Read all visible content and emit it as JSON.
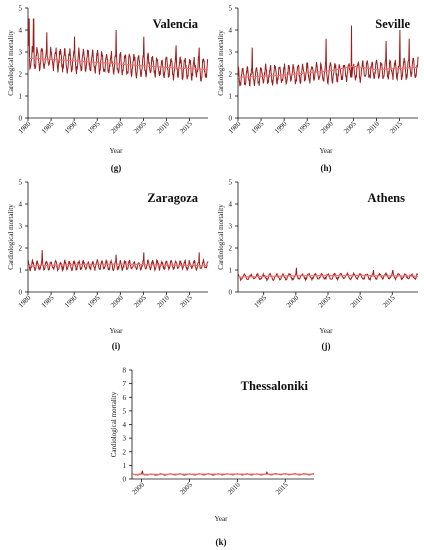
{
  "figure": {
    "background": "#ffffff"
  },
  "colors": {
    "observed": "#9e1b1b",
    "smoothed": "#f07474",
    "axis": "#111111"
  },
  "chart_data": [
    {
      "type": "line",
      "panel_letter": "(g)",
      "title": "Valencia",
      "xlabel": "Year",
      "ylabel": "Cardiological mortality",
      "xlim": [
        1980,
        2019
      ],
      "ylim": [
        0,
        5
      ],
      "xticks": [
        1980,
        1985,
        1990,
        1995,
        2000,
        2005,
        2010,
        2015
      ],
      "yticks": [
        0,
        1,
        2,
        3,
        4,
        5
      ],
      "series": [
        {
          "role": "observed",
          "x_start": 1980,
          "x_end": 2019,
          "start_level": 2.75,
          "end_level": 2.2,
          "amplitude": 0.85,
          "spikes": [
            [
              1980.2,
              4.5
            ],
            [
              1981.2,
              4.5
            ],
            [
              1984.1,
              3.9
            ],
            [
              1990.1,
              3.7
            ],
            [
              1999.1,
              4.0
            ],
            [
              2005.1,
              3.7
            ],
            [
              2012.1,
              3.3
            ],
            [
              2017.1,
              3.2
            ]
          ]
        },
        {
          "role": "smoothed",
          "x": [
            1980,
            1990,
            2000,
            2010,
            2019
          ],
          "y": [
            2.72,
            2.6,
            2.45,
            2.3,
            2.2
          ]
        }
      ]
    },
    {
      "type": "line",
      "panel_letter": "(h)",
      "title": "Seville",
      "xlabel": "Year",
      "ylabel": "Cardiological mortality",
      "xlim": [
        1980,
        2019
      ],
      "ylim": [
        0,
        5
      ],
      "xticks": [
        1980,
        1985,
        1990,
        1995,
        2000,
        2005,
        2010,
        2015
      ],
      "yticks": [
        0,
        1,
        2,
        3,
        4,
        5
      ],
      "series": [
        {
          "role": "observed",
          "x_start": 1980,
          "x_end": 2019,
          "start_level": 1.9,
          "end_level": 2.25,
          "amplitude": 0.75,
          "spikes": [
            [
              1983.1,
              3.2
            ],
            [
              1999.1,
              3.6
            ],
            [
              2004.6,
              4.2
            ],
            [
              2012.1,
              3.5
            ],
            [
              2015.1,
              4.0
            ],
            [
              2017.1,
              3.6
            ]
          ]
        },
        {
          "role": "smoothed",
          "x": [
            1980,
            1990,
            2000,
            2005,
            2010,
            2019
          ],
          "y": [
            1.85,
            1.95,
            2.15,
            2.35,
            2.2,
            2.3
          ]
        }
      ]
    },
    {
      "type": "line",
      "panel_letter": "(i)",
      "title": "Zaragoza",
      "xlabel": "Year",
      "ylabel": "Cardiological mortality",
      "xlim": [
        1980,
        2019
      ],
      "ylim": [
        0,
        5
      ],
      "xticks": [
        1980,
        1985,
        1990,
        1995,
        2000,
        2005,
        2010,
        2015
      ],
      "yticks": [
        0,
        1,
        2,
        3,
        4,
        5
      ],
      "series": [
        {
          "role": "observed",
          "x_start": 1980,
          "x_end": 2019,
          "start_level": 1.2,
          "end_level": 1.22,
          "amplitude": 0.35,
          "spikes": [
            [
              1983.1,
              1.9
            ],
            [
              1999.1,
              1.7
            ],
            [
              2005.1,
              1.8
            ],
            [
              2017.1,
              1.8
            ]
          ]
        },
        {
          "role": "smoothed",
          "x": [
            1980,
            1990,
            2000,
            2010,
            2019
          ],
          "y": [
            1.18,
            1.25,
            1.27,
            1.22,
            1.2
          ]
        }
      ]
    },
    {
      "type": "line",
      "panel_letter": "(j)",
      "title": "Athens",
      "xlabel": "Year",
      "ylabel": "Cardiological mortality",
      "xlim": [
        1991,
        2019
      ],
      "ylim": [
        0,
        5
      ],
      "xticks": [
        1995,
        2000,
        2005,
        2010,
        2015
      ],
      "yticks": [
        0,
        1,
        2,
        3,
        4,
        5
      ],
      "series": [
        {
          "role": "observed",
          "x_start": 1991,
          "x_end": 2019,
          "start_level": 0.68,
          "end_level": 0.72,
          "amplitude": 0.22,
          "spikes": [
            [
              2000.1,
              1.1
            ],
            [
              2012.1,
              1.0
            ],
            [
              2015.1,
              1.0
            ]
          ]
        },
        {
          "role": "smoothed",
          "x": [
            1991,
            2000,
            2010,
            2019
          ],
          "y": [
            0.68,
            0.74,
            0.75,
            0.72
          ]
        }
      ]
    },
    {
      "type": "line",
      "panel_letter": "(k)",
      "title": "Thessaloniki",
      "xlabel": "Year",
      "ylabel": "Cardiological mortality",
      "xlim": [
        1999,
        2018
      ],
      "ylim": [
        0,
        8
      ],
      "xticks": [
        2000,
        2005,
        2010,
        2015
      ],
      "yticks": [
        0,
        1,
        2,
        3,
        4,
        5,
        6,
        7,
        8
      ],
      "series": [
        {
          "role": "observed",
          "x_start": 1999,
          "x_end": 2018,
          "start_level": 0.33,
          "end_level": 0.35,
          "amplitude": 0.08,
          "spikes": [
            [
              2000.1,
              0.6
            ],
            [
              2013.1,
              0.5
            ]
          ]
        },
        {
          "role": "smoothed",
          "x": [
            1999,
            2008,
            2018
          ],
          "y": [
            0.34,
            0.36,
            0.35
          ]
        }
      ]
    }
  ]
}
